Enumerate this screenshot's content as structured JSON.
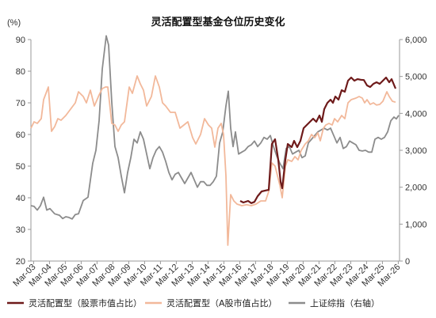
{
  "chart_data": {
    "type": "line",
    "title": "灵活配置型基金仓位历史变化",
    "left_axis_unit": "(%)",
    "left_ylim": [
      20,
      90
    ],
    "left_ticks": [
      "20",
      "30",
      "40",
      "50",
      "60",
      "70",
      "80",
      "90"
    ],
    "right_ylim": [
      0,
      6000
    ],
    "right_ticks": [
      "0",
      "1,000",
      "2,000",
      "3,000",
      "4,000",
      "5,000",
      "6,000"
    ],
    "x_range": [
      2003.0,
      2026.25
    ],
    "x_ticks": [
      {
        "label": "Mar-03",
        "x": 2003.17
      },
      {
        "label": "Mar-04",
        "x": 2004.17
      },
      {
        "label": "Mar-05",
        "x": 2005.17
      },
      {
        "label": "Mar-06",
        "x": 2006.17
      },
      {
        "label": "Mar-07",
        "x": 2007.17
      },
      {
        "label": "Mar-08",
        "x": 2008.17
      },
      {
        "label": "Mar-09",
        "x": 2009.17
      },
      {
        "label": "Mar-10",
        "x": 2010.17
      },
      {
        "label": "Mar-11",
        "x": 2011.17
      },
      {
        "label": "Mar-12",
        "x": 2012.17
      },
      {
        "label": "Mar-13",
        "x": 2013.17
      },
      {
        "label": "Mar-14",
        "x": 2014.17
      },
      {
        "label": "Mar-15",
        "x": 2015.17
      },
      {
        "label": "Mar-16",
        "x": 2016.17
      },
      {
        "label": "Mar-17",
        "x": 2017.17
      },
      {
        "label": "Mar-18",
        "x": 2018.17
      },
      {
        "label": "Mar-19",
        "x": 2019.17
      },
      {
        "label": "Mar-20",
        "x": 2020.17
      },
      {
        "label": "Mar-21",
        "x": 2021.17
      },
      {
        "label": "Mar-22",
        "x": 2022.17
      },
      {
        "label": "Mar-23",
        "x": 2023.17
      },
      {
        "label": "Mar-24",
        "x": 2024.17
      },
      {
        "label": "Mar-25",
        "x": 2025.17
      },
      {
        "label": "Mar-26",
        "x": 2026.17
      }
    ],
    "series": [
      {
        "name": "灵活配置型（股票市值占比）",
        "axis": "left",
        "color": "#6e1a1a",
        "points": [
          [
            2016.2,
            39
          ],
          [
            2016.4,
            38.5
          ],
          [
            2016.7,
            39
          ],
          [
            2016.9,
            38.3
          ],
          [
            2017.1,
            38.7
          ],
          [
            2017.3,
            40.5
          ],
          [
            2017.55,
            42
          ],
          [
            2017.8,
            42.3
          ],
          [
            2018.0,
            42.5
          ],
          [
            2018.2,
            57
          ],
          [
            2018.4,
            58.5
          ],
          [
            2018.6,
            52
          ],
          [
            2018.75,
            45
          ],
          [
            2018.85,
            43
          ],
          [
            2019.05,
            52
          ],
          [
            2019.2,
            57
          ],
          [
            2019.45,
            56
          ],
          [
            2019.6,
            58
          ],
          [
            2019.8,
            56
          ],
          [
            2020.0,
            58
          ],
          [
            2020.2,
            62
          ],
          [
            2020.4,
            63
          ],
          [
            2020.6,
            64
          ],
          [
            2020.8,
            65
          ],
          [
            2021.0,
            64
          ],
          [
            2021.2,
            66
          ],
          [
            2021.35,
            64
          ],
          [
            2021.5,
            68
          ],
          [
            2021.7,
            70
          ],
          [
            2021.9,
            71
          ],
          [
            2022.05,
            70
          ],
          [
            2022.2,
            72
          ],
          [
            2022.4,
            71
          ],
          [
            2022.6,
            74
          ],
          [
            2022.8,
            73.5
          ],
          [
            2023.0,
            77
          ],
          [
            2023.2,
            78
          ],
          [
            2023.4,
            77
          ],
          [
            2023.6,
            77.5
          ],
          [
            2023.8,
            77.3
          ],
          [
            2024.0,
            77.2
          ],
          [
            2024.2,
            75.5
          ],
          [
            2024.4,
            75
          ],
          [
            2024.6,
            76
          ],
          [
            2024.8,
            76.5
          ],
          [
            2025.0,
            76
          ],
          [
            2025.2,
            77
          ],
          [
            2025.4,
            78
          ],
          [
            2025.6,
            76.5
          ],
          [
            2025.75,
            77.5
          ],
          [
            2026.0,
            74.5
          ]
        ]
      },
      {
        "name": "灵活配置型（A股市值占比）",
        "axis": "left",
        "color": "#f2b89a",
        "points": [
          [
            2003.0,
            62
          ],
          [
            2003.2,
            64
          ],
          [
            2003.4,
            63.5
          ],
          [
            2003.65,
            65
          ],
          [
            2003.8,
            71
          ],
          [
            2004.1,
            75
          ],
          [
            2004.3,
            61
          ],
          [
            2004.5,
            62.5
          ],
          [
            2004.7,
            65
          ],
          [
            2004.9,
            64.5
          ],
          [
            2005.2,
            66
          ],
          [
            2005.5,
            68
          ],
          [
            2005.8,
            70
          ],
          [
            2006.0,
            73.5
          ],
          [
            2006.3,
            72
          ],
          [
            2006.5,
            70
          ],
          [
            2006.75,
            74
          ],
          [
            2007.0,
            69
          ],
          [
            2007.3,
            72.5
          ],
          [
            2007.5,
            74.5
          ],
          [
            2007.7,
            75
          ],
          [
            2007.85,
            75
          ],
          [
            2008.1,
            63.5
          ],
          [
            2008.3,
            63
          ],
          [
            2008.5,
            61
          ],
          [
            2008.7,
            63
          ],
          [
            2008.9,
            64
          ],
          [
            2009.2,
            75
          ],
          [
            2009.4,
            73
          ],
          [
            2009.7,
            78.5
          ],
          [
            2009.9,
            76
          ],
          [
            2010.1,
            74
          ],
          [
            2010.3,
            69
          ],
          [
            2010.6,
            72
          ],
          [
            2010.85,
            78.5
          ],
          [
            2011.1,
            75
          ],
          [
            2011.3,
            70
          ],
          [
            2011.5,
            69
          ],
          [
            2011.8,
            67
          ],
          [
            2012.1,
            67
          ],
          [
            2012.4,
            62
          ],
          [
            2012.65,
            63
          ],
          [
            2012.9,
            64
          ],
          [
            2013.2,
            59
          ],
          [
            2013.4,
            57
          ],
          [
            2013.7,
            60
          ],
          [
            2013.95,
            65
          ],
          [
            2014.2,
            63
          ],
          [
            2014.4,
            62
          ],
          [
            2014.6,
            56
          ],
          [
            2014.8,
            62
          ],
          [
            2015.0,
            63.5
          ],
          [
            2015.15,
            60
          ],
          [
            2015.3,
            47
          ],
          [
            2015.42,
            25
          ],
          [
            2015.6,
            41
          ],
          [
            2015.8,
            39
          ],
          [
            2016.0,
            38
          ],
          [
            2016.3,
            37.5
          ],
          [
            2016.6,
            37.8
          ],
          [
            2016.9,
            37.5
          ],
          [
            2017.2,
            38
          ],
          [
            2017.5,
            39
          ],
          [
            2017.8,
            39
          ],
          [
            2018.0,
            42
          ],
          [
            2018.2,
            51
          ],
          [
            2018.4,
            50
          ],
          [
            2018.55,
            47
          ],
          [
            2018.7,
            44
          ],
          [
            2018.85,
            40
          ],
          [
            2019.05,
            50
          ],
          [
            2019.2,
            52
          ],
          [
            2019.45,
            51.5
          ],
          [
            2019.65,
            53
          ],
          [
            2019.85,
            52
          ],
          [
            2020.05,
            55
          ],
          [
            2020.3,
            57
          ],
          [
            2020.5,
            58
          ],
          [
            2020.7,
            60
          ],
          [
            2020.9,
            59
          ],
          [
            2021.1,
            60.5
          ],
          [
            2021.25,
            58
          ],
          [
            2021.45,
            62
          ],
          [
            2021.6,
            63
          ],
          [
            2021.8,
            63.5
          ],
          [
            2022.0,
            63
          ],
          [
            2022.15,
            65
          ],
          [
            2022.35,
            64
          ],
          [
            2022.6,
            66
          ],
          [
            2022.8,
            65
          ],
          [
            2023.0,
            70
          ],
          [
            2023.2,
            71
          ],
          [
            2023.5,
            71.5
          ],
          [
            2023.7,
            72
          ],
          [
            2023.9,
            71.5
          ],
          [
            2024.05,
            70
          ],
          [
            2024.2,
            71
          ],
          [
            2024.4,
            69.5
          ],
          [
            2024.6,
            70
          ],
          [
            2024.8,
            69.3
          ],
          [
            2025.0,
            69.5
          ],
          [
            2025.2,
            70.5
          ],
          [
            2025.45,
            73.5
          ],
          [
            2025.6,
            72
          ],
          [
            2025.8,
            70.5
          ],
          [
            2026.0,
            70.2
          ]
        ]
      },
      {
        "name": "上证综指（右轴）",
        "axis": "right",
        "color": "#8c8c8c",
        "points": [
          [
            2003.0,
            1500
          ],
          [
            2003.2,
            1480
          ],
          [
            2003.4,
            1380
          ],
          [
            2003.6,
            1500
          ],
          [
            2003.8,
            1730
          ],
          [
            2004.0,
            1380
          ],
          [
            2004.2,
            1420
          ],
          [
            2004.5,
            1280
          ],
          [
            2004.8,
            1240
          ],
          [
            2005.0,
            1150
          ],
          [
            2005.2,
            1200
          ],
          [
            2005.4,
            1180
          ],
          [
            2005.6,
            1140
          ],
          [
            2005.8,
            1260
          ],
          [
            2006.0,
            1280
          ],
          [
            2006.3,
            1640
          ],
          [
            2006.6,
            1730
          ],
          [
            2006.9,
            2650
          ],
          [
            2007.1,
            3000
          ],
          [
            2007.3,
            3800
          ],
          [
            2007.5,
            5200
          ],
          [
            2007.75,
            6100
          ],
          [
            2007.9,
            5850
          ],
          [
            2008.1,
            4300
          ],
          [
            2008.3,
            3100
          ],
          [
            2008.5,
            2800
          ],
          [
            2008.7,
            2300
          ],
          [
            2008.9,
            1850
          ],
          [
            2009.1,
            2400
          ],
          [
            2009.3,
            2800
          ],
          [
            2009.5,
            3300
          ],
          [
            2009.7,
            3200
          ],
          [
            2009.9,
            3500
          ],
          [
            2010.1,
            3300
          ],
          [
            2010.3,
            2900
          ],
          [
            2010.5,
            2500
          ],
          [
            2010.7,
            2800
          ],
          [
            2010.9,
            3000
          ],
          [
            2011.1,
            3100
          ],
          [
            2011.3,
            2950
          ],
          [
            2011.5,
            2700
          ],
          [
            2011.7,
            2400
          ],
          [
            2011.9,
            2200
          ],
          [
            2012.1,
            2350
          ],
          [
            2012.3,
            2400
          ],
          [
            2012.5,
            2250
          ],
          [
            2012.7,
            2100
          ],
          [
            2012.9,
            2250
          ],
          [
            2013.1,
            2400
          ],
          [
            2013.3,
            2200
          ],
          [
            2013.5,
            2000
          ],
          [
            2013.7,
            2150
          ],
          [
            2013.9,
            2150
          ],
          [
            2014.1,
            2050
          ],
          [
            2014.3,
            2050
          ],
          [
            2014.5,
            2150
          ],
          [
            2014.7,
            2300
          ],
          [
            2014.9,
            3200
          ],
          [
            2015.1,
            3500
          ],
          [
            2015.3,
            4200
          ],
          [
            2015.45,
            4600
          ],
          [
            2015.6,
            3600
          ],
          [
            2015.75,
            3100
          ],
          [
            2015.9,
            3500
          ],
          [
            2016.1,
            2900
          ],
          [
            2016.3,
            2950
          ],
          [
            2016.5,
            3000
          ],
          [
            2016.7,
            3100
          ],
          [
            2016.9,
            3150
          ],
          [
            2017.1,
            3250
          ],
          [
            2017.3,
            3100
          ],
          [
            2017.5,
            3200
          ],
          [
            2017.7,
            3350
          ],
          [
            2017.9,
            3300
          ],
          [
            2018.1,
            3400
          ],
          [
            2018.3,
            3100
          ],
          [
            2018.5,
            2850
          ],
          [
            2018.7,
            2650
          ],
          [
            2018.9,
            2500
          ],
          [
            2019.1,
            3050
          ],
          [
            2019.3,
            3100
          ],
          [
            2019.5,
            2900
          ],
          [
            2019.7,
            2950
          ],
          [
            2019.9,
            3000
          ],
          [
            2020.1,
            2800
          ],
          [
            2020.3,
            2850
          ],
          [
            2020.5,
            3200
          ],
          [
            2020.7,
            3300
          ],
          [
            2020.9,
            3400
          ],
          [
            2021.1,
            3500
          ],
          [
            2021.3,
            3550
          ],
          [
            2021.5,
            3600
          ],
          [
            2021.7,
            3550
          ],
          [
            2021.9,
            3600
          ],
          [
            2022.1,
            3400
          ],
          [
            2022.3,
            3200
          ],
          [
            2022.5,
            3350
          ],
          [
            2022.7,
            3050
          ],
          [
            2022.9,
            3100
          ],
          [
            2023.1,
            3250
          ],
          [
            2023.3,
            3200
          ],
          [
            2023.5,
            3150
          ],
          [
            2023.7,
            3000
          ],
          [
            2023.9,
            2980
          ],
          [
            2024.1,
            3000
          ],
          [
            2024.3,
            2950
          ],
          [
            2024.5,
            2950
          ],
          [
            2024.7,
            3300
          ],
          [
            2024.9,
            3350
          ],
          [
            2025.1,
            3300
          ],
          [
            2025.3,
            3350
          ],
          [
            2025.5,
            3500
          ],
          [
            2025.7,
            3800
          ],
          [
            2025.9,
            3900
          ],
          [
            2026.05,
            3850
          ],
          [
            2026.2,
            3950
          ]
        ]
      }
    ]
  }
}
